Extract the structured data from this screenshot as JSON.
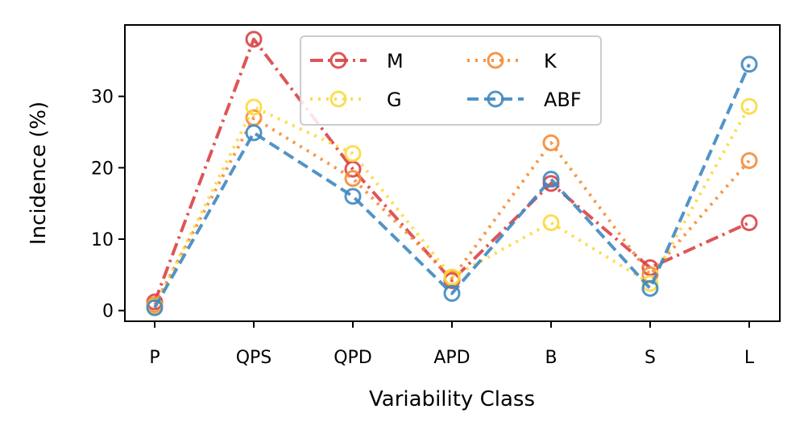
{
  "chart_data": {
    "type": "line",
    "xlabel": "Variability Class",
    "ylabel": "Incidence (%)",
    "categories": [
      "P",
      "QPS",
      "QPD",
      "APD",
      "B",
      "S",
      "L"
    ],
    "ylim": [
      -1.5,
      40
    ],
    "yticks": [
      0,
      10,
      20,
      30
    ],
    "grid": false,
    "legend": {
      "placement": "top-center",
      "columns": 2
    },
    "series": [
      {
        "name": "M",
        "values": [
          1.2,
          38.0,
          19.8,
          4.2,
          17.8,
          6.0,
          12.3
        ],
        "color": "#d94345",
        "dash": "dashdot"
      },
      {
        "name": "K",
        "values": [
          0.8,
          27.0,
          18.5,
          4.5,
          23.5,
          5.0,
          21.0
        ],
        "color": "#f58c35",
        "dash": "dotted"
      },
      {
        "name": "G",
        "values": [
          0.5,
          28.5,
          22.0,
          4.7,
          12.3,
          3.8,
          28.6
        ],
        "color": "#fcd940",
        "dash": "dotted"
      },
      {
        "name": "ABF",
        "values": [
          0.4,
          24.9,
          16.0,
          2.4,
          18.4,
          3.1,
          34.5
        ],
        "color": "#3f88c0",
        "dash": "dashed"
      }
    ]
  }
}
